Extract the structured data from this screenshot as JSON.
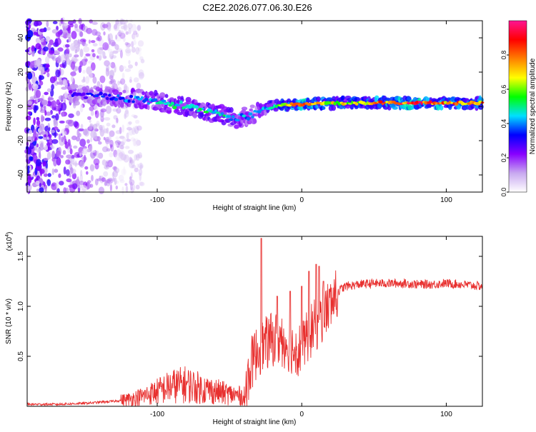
{
  "title": "C2E2.2026.077.06.30.E26",
  "chart_data": [
    {
      "type": "heatmap",
      "name": "spectrogram",
      "xlabel": "Height of straight line (km)",
      "ylabel": "Frequency (Hz)",
      "xlim": [
        -190,
        125
      ],
      "ylim": [
        -50,
        50
      ],
      "xticks": [
        -100,
        0,
        100
      ],
      "xtick_labels": [
        "-100",
        "0",
        "100"
      ],
      "yticks": [
        -40,
        -20,
        0,
        20,
        40
      ],
      "ytick_labels": [
        "-40",
        "-20",
        "0",
        "20",
        "40"
      ],
      "colorbar": {
        "label": "Normalized spectral amplitude",
        "ticks": [
          0.0,
          0.2,
          0.4,
          0.6,
          0.8
        ],
        "tick_labels": [
          "0.0",
          "0.2",
          "0.4",
          "0.6",
          "0.8"
        ],
        "range": [
          0,
          1
        ],
        "colormap": [
          "#ffffff",
          "#c8a8f0",
          "#8800ff",
          "#0000ff",
          "#00e0ff",
          "#00ff00",
          "#ffff00",
          "#ff8000",
          "#ff0000",
          "#ff1493"
        ]
      },
      "ridge_frequency_hz": {
        "x": [
          -160,
          -140,
          -120,
          -100,
          -80,
          -60,
          -45,
          -35,
          -25,
          -10,
          0,
          20,
          40,
          60,
          80,
          100,
          125
        ],
        "y": [
          7,
          6,
          5,
          3,
          0,
          -4,
          -7,
          -5,
          -1,
          1,
          1,
          2,
          2,
          2,
          2,
          2,
          2
        ]
      },
      "ridge_amplitude": {
        "x": [
          -160,
          -140,
          -120,
          -100,
          -80,
          -60,
          -45,
          -35,
          -25,
          -10,
          0,
          20,
          40,
          60,
          80,
          100,
          125
        ],
        "y": [
          0.25,
          0.3,
          0.35,
          0.4,
          0.45,
          0.45,
          0.4,
          0.35,
          0.4,
          0.65,
          0.8,
          0.6,
          0.6,
          0.75,
          0.8,
          0.7,
          0.7
        ]
      },
      "noise_region_x": [
        -190,
        -120
      ]
    },
    {
      "type": "line",
      "name": "snr",
      "xlabel": "Height of straight line (km)",
      "ylabel": "SNR (10 * v/v)",
      "multiplier_label": "(x10",
      "multiplier_exponent": "4",
      "xlim": [
        -190,
        125
      ],
      "ylim": [
        0,
        1.7
      ],
      "xticks": [
        -100,
        0,
        100
      ],
      "xtick_labels": [
        "-100",
        "0",
        "100"
      ],
      "yticks": [
        0.5,
        1.0,
        1.5
      ],
      "ytick_labels": [
        "0.5",
        "1.0",
        "1.5"
      ],
      "color": "#e8302f",
      "series": [
        {
          "name": "SNR",
          "x": [
            -190,
            -170,
            -150,
            -130,
            -120,
            -110,
            -100,
            -90,
            -80,
            -70,
            -60,
            -50,
            -40,
            -35,
            -30,
            -25,
            -20,
            -15,
            -10,
            -5,
            0,
            5,
            10,
            15,
            20,
            25,
            30,
            40,
            50,
            60,
            70,
            80,
            90,
            100,
            110,
            125
          ],
          "y": [
            0.02,
            0.02,
            0.03,
            0.05,
            0.07,
            0.1,
            0.15,
            0.2,
            0.22,
            0.18,
            0.15,
            0.12,
            0.1,
            0.45,
            0.6,
            0.65,
            0.7,
            0.7,
            0.65,
            0.6,
            0.6,
            0.75,
            0.85,
            0.95,
            1.05,
            1.15,
            1.2,
            1.22,
            1.23,
            1.23,
            1.23,
            1.22,
            1.22,
            1.23,
            1.22,
            1.2
          ]
        }
      ],
      "spikes": {
        "x": [
          -28,
          -17,
          -8,
          0,
          5,
          10,
          12,
          15
        ],
        "y": [
          1.68,
          1.1,
          1.15,
          1.2,
          1.35,
          1.42,
          1.4,
          1.25
        ]
      }
    }
  ]
}
